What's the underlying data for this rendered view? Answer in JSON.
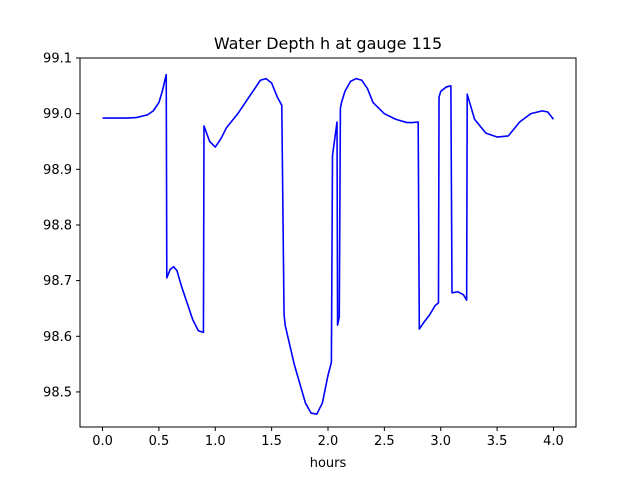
{
  "chart_data": {
    "type": "line",
    "title": "Water Depth h at gauge 115",
    "xlabel": "hours",
    "ylabel": "",
    "xlim": [
      -0.2,
      4.2
    ],
    "ylim": [
      98.437,
      99.1
    ],
    "xticks": [
      0.0,
      0.5,
      1.0,
      1.5,
      2.0,
      2.5,
      3.0,
      3.5,
      4.0
    ],
    "xtick_labels": [
      "0.0",
      "0.5",
      "1.0",
      "1.5",
      "2.0",
      "2.5",
      "3.0",
      "3.5",
      "4.0"
    ],
    "yticks": [
      98.5,
      98.6,
      98.7,
      98.8,
      98.9,
      99.0,
      99.1
    ],
    "ytick_labels": [
      "98.5",
      "98.6",
      "98.7",
      "98.8",
      "98.9",
      "99.0",
      "99.1"
    ],
    "grid": false,
    "legend": "none",
    "series": [
      {
        "color": "#0000ff",
        "x": [
          0.0,
          0.1,
          0.2,
          0.3,
          0.4,
          0.45,
          0.5,
          0.53,
          0.555,
          0.565,
          0.57,
          0.6,
          0.63,
          0.66,
          0.7,
          0.75,
          0.8,
          0.85,
          0.895,
          0.9,
          0.95,
          1.0,
          1.05,
          1.1,
          1.2,
          1.3,
          1.4,
          1.45,
          1.5,
          1.55,
          1.59,
          1.61,
          1.62,
          1.7,
          1.8,
          1.85,
          1.9,
          1.95,
          2.0,
          2.03,
          2.04,
          2.08,
          2.085,
          2.1,
          2.11,
          2.12,
          2.15,
          2.2,
          2.25,
          2.3,
          2.35,
          2.4,
          2.5,
          2.6,
          2.7,
          2.75,
          2.8,
          2.81,
          2.85,
          2.9,
          2.95,
          2.98,
          2.985,
          3.0,
          3.05,
          3.09,
          3.1,
          3.15,
          3.2,
          3.23,
          3.235,
          3.3,
          3.4,
          3.5,
          3.6,
          3.7,
          3.8,
          3.9,
          3.95,
          4.0
        ],
        "values": [
          98.992,
          98.992,
          98.992,
          98.993,
          98.998,
          99.005,
          99.02,
          99.04,
          99.062,
          99.07,
          98.705,
          98.72,
          98.725,
          98.718,
          98.69,
          98.66,
          98.63,
          98.61,
          98.607,
          98.978,
          98.95,
          98.94,
          98.955,
          98.975,
          99.0,
          99.03,
          99.06,
          99.063,
          99.055,
          99.03,
          99.015,
          98.64,
          98.62,
          98.55,
          98.48,
          98.462,
          98.46,
          98.48,
          98.53,
          98.553,
          98.925,
          98.985,
          98.62,
          98.635,
          99.01,
          99.02,
          99.04,
          99.058,
          99.063,
          99.06,
          99.045,
          99.02,
          99.0,
          98.99,
          98.984,
          98.984,
          98.985,
          98.613,
          98.625,
          98.638,
          98.655,
          98.66,
          99.03,
          99.04,
          99.048,
          99.05,
          98.678,
          98.68,
          98.675,
          98.665,
          99.035,
          98.99,
          98.965,
          98.958,
          98.96,
          98.985,
          99.0,
          99.005,
          99.003,
          98.99
        ]
      }
    ]
  }
}
